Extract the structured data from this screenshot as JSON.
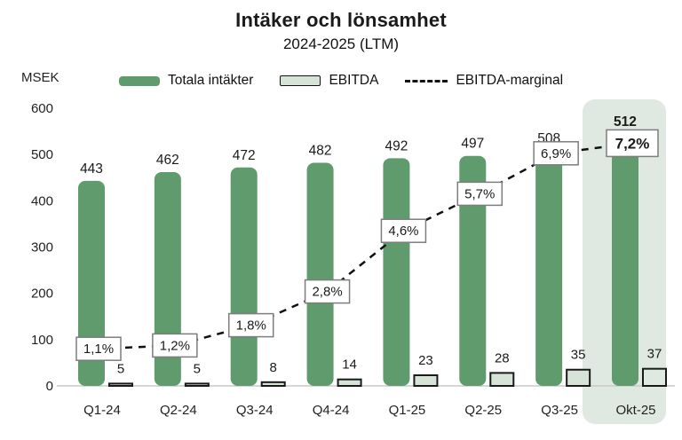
{
  "header": {
    "title": "Intäker och lönsamhet",
    "subtitle": "2024-2025 (LTM)",
    "unit_label": "MSEK"
  },
  "legend": {
    "position": "top",
    "items": [
      {
        "label": "Totala intäkter",
        "swatch": "filled-bar",
        "color": "#5f9b6d"
      },
      {
        "label": "EBITDA",
        "swatch": "outlined-bar",
        "color": "#d6e4d8"
      },
      {
        "label": "EBITDA-marginal",
        "swatch": "dashed-line",
        "color": "#111111"
      }
    ]
  },
  "chart_data": {
    "type": "bar",
    "title": "Intäker och lönsamhet",
    "subtitle": "2024-2025 (LTM)",
    "ylabel": "MSEK",
    "ylim": [
      0,
      600
    ],
    "yticks": [
      0,
      100,
      200,
      300,
      400,
      500,
      600
    ],
    "grid": false,
    "legend_position": "top",
    "categories": [
      "Q1-24",
      "Q2-24",
      "Q3-24",
      "Q4-24",
      "Q1-25",
      "Q2-25",
      "Q3-25",
      "Okt-25"
    ],
    "highlight_category": "Okt-25",
    "series": [
      {
        "name": "Totala intäkter",
        "type": "bar",
        "values": [
          443,
          462,
          472,
          482,
          492,
          497,
          508,
          512
        ]
      },
      {
        "name": "EBITDA",
        "type": "bar",
        "values": [
          5,
          5,
          8,
          14,
          23,
          28,
          35,
          37
        ]
      },
      {
        "name": "EBITDA-marginal",
        "type": "line",
        "unit": "%",
        "values": [
          1.1,
          1.2,
          1.8,
          2.8,
          4.6,
          5.7,
          6.9,
          7.2
        ],
        "labels": [
          "1,1%",
          "1,2%",
          "1,8%",
          "2,8%",
          "4,6%",
          "5,7%",
          "6,9%",
          "7,2%"
        ]
      }
    ]
  },
  "colors": {
    "revenue_bar": "#5f9b6d",
    "ebitda_fill": "#d6e4d8",
    "ebitda_stroke": "#1a1a1a",
    "margin_line": "#111111",
    "highlight_band": "#dfe9e1",
    "axis_line": "#c9c9c9",
    "label_box_border": "#7d7d7d",
    "text": "#1a1a1a"
  }
}
